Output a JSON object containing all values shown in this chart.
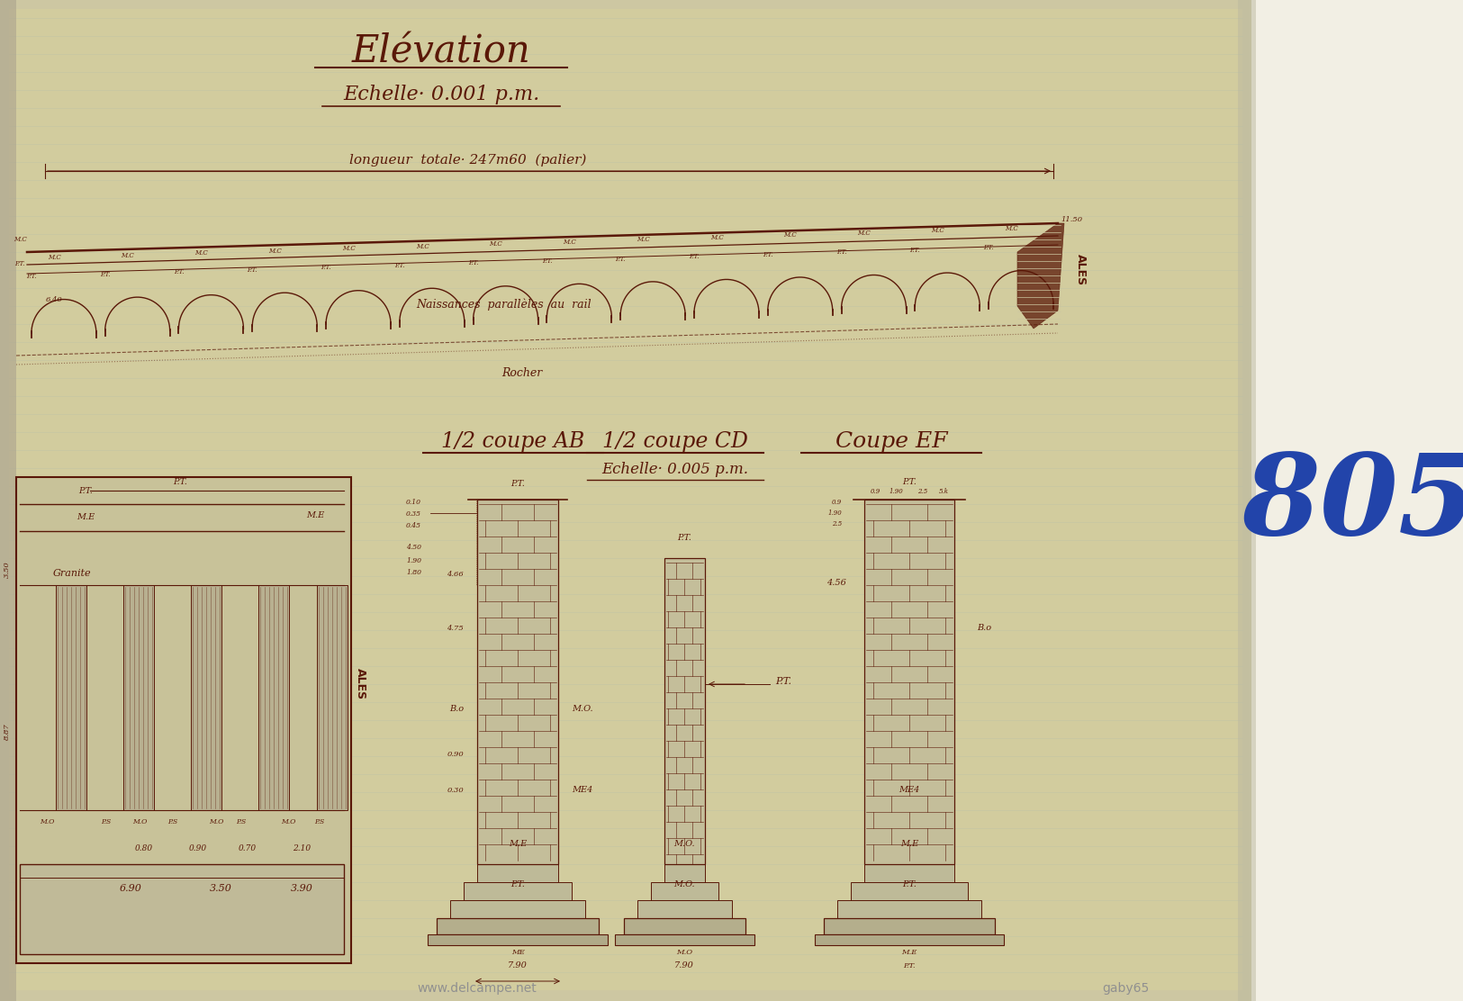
{
  "bg_paper": "#cfc9a0",
  "bg_paper2": "#d5cfaa",
  "bg_white": "#f0ede0",
  "ink": "#7a2818",
  "ink2": "#5a1808",
  "blue": "#2244aa",
  "gray": "#888888",
  "title": "Elévation",
  "subtitle": "Echelle· 0.001 p.m.",
  "longueur": "longueur  totale· 247m60  (palier)",
  "naissances": "Naissances  parallèles  au  rail",
  "rocher": "Rocher",
  "ales": "ALES",
  "s_ab": "1/2 coupe AB",
  "s_cd": "1/2 coupe CD",
  "s_ef": "Coupe EF",
  "echelle2": "Echelle· 0.005 p.m.",
  "n805": "805",
  "wm1": "www.delcampe.net",
  "wm2": "gaby65",
  "fig_w": 16.25,
  "fig_h": 11.12,
  "dpi": 100
}
